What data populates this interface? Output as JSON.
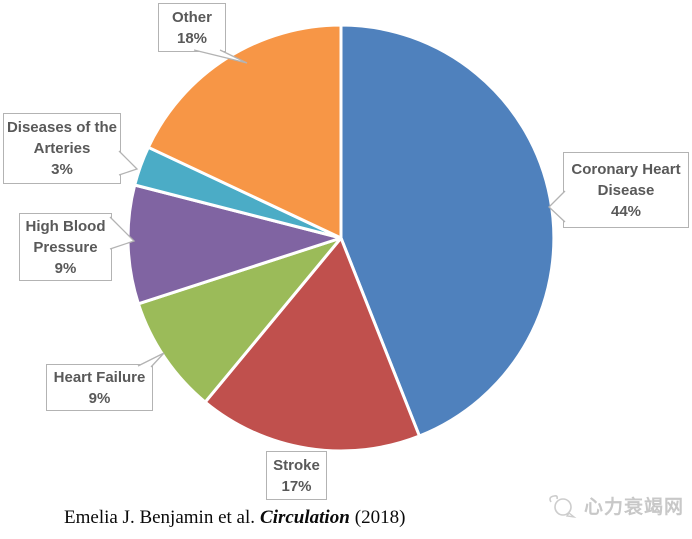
{
  "chart_data": {
    "type": "pie",
    "title": "",
    "unit": "percent",
    "start_angle": "12 o'clock",
    "direction": "clockwise",
    "legend": "none",
    "labels_shown_as": "callout boxes with category name and percent",
    "slices": [
      {
        "label": "Coronary Heart Disease",
        "value": 44,
        "pct_label": "44%",
        "color": "#4F81BD"
      },
      {
        "label": "Stroke",
        "value": 17,
        "pct_label": "17%",
        "color": "#C0504D"
      },
      {
        "label": "Heart Failure",
        "value": 9,
        "pct_label": "9%",
        "color": "#9BBB59"
      },
      {
        "label": "High Blood Pressure",
        "value": 9,
        "pct_label": "9%",
        "color": "#8064A2"
      },
      {
        "label": "Diseases of the Arteries",
        "value": 3,
        "pct_label": "3%",
        "color": "#4BACC6"
      },
      {
        "label": "Other",
        "value": 18,
        "pct_label": "18%",
        "color": "#F79646"
      }
    ]
  },
  "citation": {
    "prefix": "Emelia J. Benjamin et al.",
    "journal": "Circulation",
    "suffix": "(2018)"
  },
  "watermark": {
    "text": "心力衰竭网"
  }
}
